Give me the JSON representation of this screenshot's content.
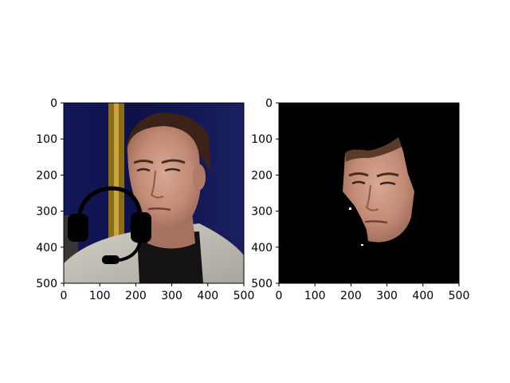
{
  "chart_data": [
    {
      "type": "image",
      "title": "",
      "xlim": [
        0,
        500
      ],
      "ylim": [
        500,
        0
      ],
      "xticks": [
        "0",
        "100",
        "200",
        "300",
        "400",
        "500"
      ],
      "yticks": [
        "0",
        "100",
        "200",
        "300",
        "400",
        "500"
      ],
      "content": "photo of a man's face with a drawn black headset overlay",
      "colors": {
        "background": "#0c0f48",
        "jacket": "#bdb9b0",
        "headset": "#000000"
      }
    },
    {
      "type": "image",
      "title": "",
      "xlim": [
        0,
        500
      ],
      "ylim": [
        500,
        0
      ],
      "xticks": [
        "0",
        "100",
        "200",
        "300",
        "400",
        "500"
      ],
      "yticks": [
        "0",
        "100",
        "200",
        "300",
        "400",
        "500"
      ],
      "content": "segmented face region on black background",
      "colors": {
        "background": "#000000",
        "skin": "#c99580"
      }
    }
  ]
}
